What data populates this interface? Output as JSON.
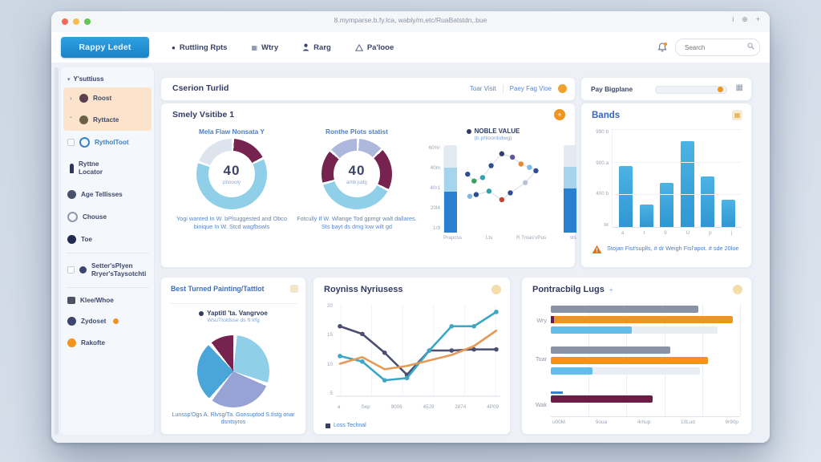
{
  "window": {
    "title": "8.mymparse.b.fy.lca, wably/m,etc/RuaBatstdn,.bue",
    "icons": {
      "info": "i",
      "settings": "⊕",
      "add": "+"
    }
  },
  "navbar": {
    "logo": "Rappy Ledet",
    "items": [
      {
        "label": "Ruttling Rpts"
      },
      {
        "label": "Wtry"
      },
      {
        "label": "Rarg"
      },
      {
        "label": "Pa'looe"
      }
    ],
    "search_placeholder": "Search"
  },
  "sidebar": {
    "header": "Y'suttiuss",
    "items": [
      {
        "label": "Roost"
      },
      {
        "label": "Ryttacte"
      },
      {
        "label": "RytholToot"
      },
      {
        "label": "Ryttne",
        "label2": "Locator"
      },
      {
        "label": "Age Tellisses"
      },
      {
        "label": "Chouse"
      },
      {
        "label": "Toe"
      },
      {
        "label": "Setter'sPlyen",
        "label2": "Rryer'sTaysotchti"
      },
      {
        "label": "Klee/Whoe"
      },
      {
        "label": "Zydoset"
      },
      {
        "label": "Rakofte"
      }
    ]
  },
  "header_card": {
    "title": "Cserion Turlid",
    "link1": "Toar Visit",
    "link2": "Paey Fag Vioe"
  },
  "big_card": {
    "title": "Smely Vsitibe 1"
  },
  "pay_card": {
    "label": "Pay Bigplane"
  },
  "glyphs": {
    "caret_right": "›",
    "caret_up": "ˆ",
    "filter": "▾",
    "grid": "▦",
    "dot": "●",
    "plus": "+"
  },
  "colors": {
    "accent_blue": "#2196d9",
    "accent_orange": "#f0941f",
    "maroon": "#77234f",
    "cyan": "#8fd0e8",
    "lavender": "#97a3d4"
  },
  "chart_data": [
    {
      "id": "weekly-donut-1",
      "type": "donut",
      "title": "Mela Flaw Nonsata Y",
      "center_value": "40",
      "center_label": "phoooly",
      "segments": [
        {
          "label": "maroon",
          "v": 17,
          "c": "#77234f"
        },
        {
          "label": "cyan",
          "v": 63,
          "c": "#8fd0e8"
        },
        {
          "label": "pale-gray",
          "v": 20,
          "c": "#dde4ee"
        }
      ],
      "caption": "Yogi wanted In W. bPlsuggested and Obco binique In W. Stcd wagfbswls"
    },
    {
      "id": "weekly-donut-2",
      "type": "donut",
      "title": "Ronthe Plots statist",
      "center_value": "40",
      "center_label": "amb judg",
      "segments": [
        {
          "label": "lavender",
          "v": 12,
          "c": "#aeb8dd"
        },
        {
          "label": "maroon",
          "v": 20,
          "c": "#77234f"
        },
        {
          "label": "cyan",
          "v": 38,
          "c": "#8fd0e8"
        },
        {
          "label": "maroon-2",
          "v": 16,
          "c": "#77234f"
        },
        {
          "label": "lavender-2",
          "v": 14,
          "c": "#aeb8dd"
        }
      ],
      "caption": "Fotcully If W. Wlange Tod gpmgr walt dallares. Sts bayt ds dmg low wilt gd"
    },
    {
      "id": "noble-value",
      "type": "stacked-scatter",
      "legend": "NOBLE VALUE",
      "legend_sub": "(b.phloonbdwg)",
      "y_ticks": [
        "60%!",
        "40m",
        "40r1",
        "20l4",
        "1r9"
      ],
      "x_ticks": [
        "Praposs",
        "Lts",
        "R Tmas'vPus",
        "sts"
      ],
      "ylim": [
        0,
        100
      ],
      "bars": [
        {
          "stack": [
            {
              "v": 46,
              "c": "#2b7fd0"
            },
            {
              "v": 27,
              "c": "#a5d4ec"
            },
            {
              "v": 25,
              "c": "#e3eaf1"
            }
          ]
        },
        {
          "stack": [
            {
              "v": 50,
              "c": "#2b7fd0"
            },
            {
              "v": 24,
              "c": "#a5d4ec"
            },
            {
              "v": 24,
              "c": "#e3eaf1"
            }
          ]
        }
      ],
      "points": [
        {
          "x": 10,
          "y": 36,
          "c": "#2d4f92"
        },
        {
          "x": 16,
          "y": 44,
          "c": "#3f9e62"
        },
        {
          "x": 24,
          "y": 40,
          "c": "#2fa3ab"
        },
        {
          "x": 32,
          "y": 26,
          "c": "#2d4f92"
        },
        {
          "x": 42,
          "y": 12,
          "c": "#33406e"
        },
        {
          "x": 52,
          "y": 16,
          "c": "#5f58a0"
        },
        {
          "x": 60,
          "y": 24,
          "c": "#e4892f"
        },
        {
          "x": 68,
          "y": 28,
          "c": "#7fb9e6"
        },
        {
          "x": 74,
          "y": 32,
          "c": "#2d4f92"
        },
        {
          "x": 64,
          "y": 46,
          "c": "#b9c4d4"
        },
        {
          "x": 50,
          "y": 58,
          "c": "#2d4f92"
        },
        {
          "x": 42,
          "y": 66,
          "c": "#c44434"
        },
        {
          "x": 30,
          "y": 56,
          "c": "#2fa3ab"
        },
        {
          "x": 18,
          "y": 60,
          "c": "#2d4f92"
        },
        {
          "x": 12,
          "y": 62,
          "c": "#7fb9e6"
        }
      ]
    },
    {
      "id": "bands",
      "type": "bar",
      "title": "Bands",
      "categories": [
        "a",
        "t",
        "9",
        "U",
        "p",
        "j"
      ],
      "values": [
        620,
        230,
        450,
        880,
        520,
        280
      ],
      "ylim": [
        0,
        1000
      ],
      "y_ticks": [
        "990 b",
        "900 a",
        "400 b",
        "br"
      ],
      "bar_color": "#3ba4da",
      "note": "Stojan Fist'suplls, # dr Weigh Fisl'apot. # sde 20loe"
    },
    {
      "id": "trend",
      "type": "line",
      "title": "Royniss Nyriusess",
      "x_ticks": [
        "a",
        "Sep",
        "9006",
        "45J9",
        "2874",
        "4P09"
      ],
      "y_ticks": [
        "20",
        "15",
        "10",
        "5"
      ],
      "ylim": [
        0,
        80
      ],
      "series": [
        {
          "name": "navy",
          "color": "#4b4e71",
          "markers": true,
          "values": [
            62,
            55,
            38,
            18,
            40,
            40,
            41,
            41
          ]
        },
        {
          "name": "teal",
          "color": "#3ba6c6",
          "markers": true,
          "values": [
            35,
            30,
            13,
            15,
            40,
            62,
            62,
            75
          ]
        },
        {
          "name": "orange",
          "color": "#e59a58",
          "markers": false,
          "values": [
            28,
            34,
            23,
            26,
            31,
            36,
            44,
            58
          ]
        }
      ],
      "legend": "Loss Technal"
    },
    {
      "id": "forecast",
      "type": "bar-horizontal",
      "title": "Pontracbilg Lugs",
      "title_suffix": "+",
      "x_ticks": [
        "u00M",
        "9oua",
        "4rhup",
        "10Lud",
        "9r90p"
      ],
      "xlim": [
        0,
        100
      ],
      "groups": [
        {
          "label": "Wry",
          "bars": [
            {
              "v": 78,
              "c": "#8a93a6"
            },
            {
              "v": 96,
              "c": "#f0941f",
              "stub": "#6d1d45"
            },
            {
              "v": 43,
              "c": "#62bde8",
              "track": 88
            }
          ]
        },
        {
          "label": "Toar",
          "bars": [
            {
              "v": 63,
              "c": "#8a93a6"
            },
            {
              "v": 83,
              "c": "#f0941f"
            },
            {
              "v": 22,
              "c": "#62bde8",
              "track": 79
            }
          ]
        },
        {
          "label": "Wak",
          "bars": [
            {
              "v": 54,
              "c": "#6d1d45",
              "cap": "#3b7fd4"
            }
          ]
        }
      ]
    },
    {
      "id": "turned-pie",
      "type": "pie",
      "title": "Best Turned Painting/Tattlot",
      "legend": "Yaptitl 'ta. Vangrvoe",
      "legend_sub": "WsuTtoldsse ds ft lrfg",
      "slices": [
        {
          "label": "cyan",
          "v": 30,
          "c": "#8fd0e8"
        },
        {
          "label": "lavender",
          "v": 30,
          "c": "#97a3d4"
        },
        {
          "label": "blue",
          "v": 28,
          "c": "#4aa6d8"
        },
        {
          "label": "maroon",
          "v": 12,
          "c": "#77234f"
        }
      ],
      "caption": "Lunssp'Ogs A. Rlvsg/Ta. Gonsuptod S.tlstg onar dsntsyros"
    }
  ]
}
